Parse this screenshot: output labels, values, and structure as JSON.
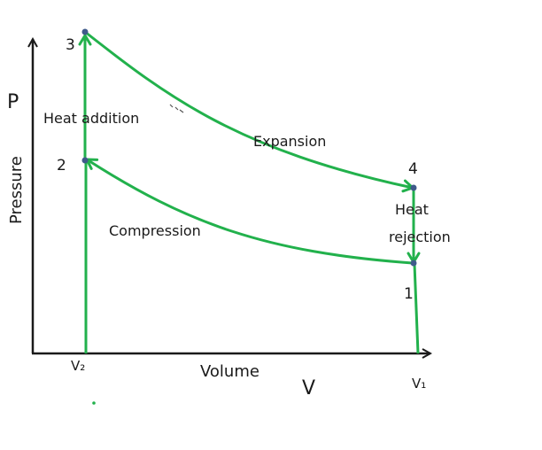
{
  "axes": {
    "y_letter": "P",
    "y_label": "Pressure",
    "x_label": "Volume",
    "x_letter": "V",
    "v_left": "V₂",
    "v_right": "V₁"
  },
  "points": {
    "p1": "1",
    "p2": "2",
    "p3": "3",
    "p4": "4"
  },
  "processes": {
    "heat_addition": "Heat addition",
    "expansion": "Expansion",
    "compression": "Compression",
    "heat_rejection_line1": "Heat",
    "heat_rejection_line2": "rejection"
  },
  "colors": {
    "process_line": "#22b14c",
    "axis": "#1a1a1a",
    "state_point": "#3f5a8a"
  }
}
